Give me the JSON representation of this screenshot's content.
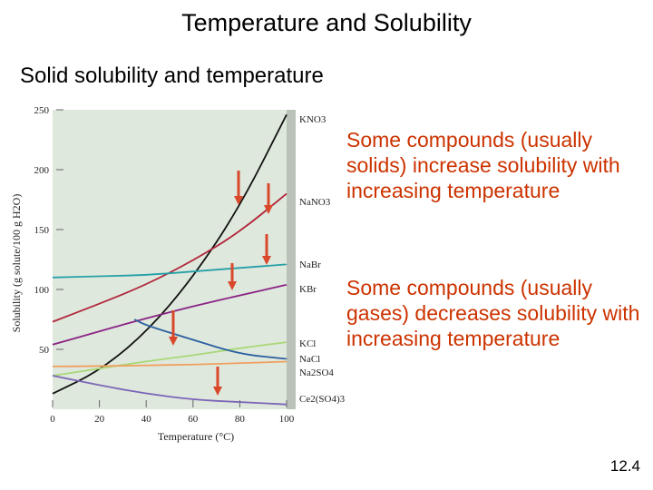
{
  "slide": {
    "title": "Temperature and Solubility",
    "subtitle": "Solid solubility and temperature",
    "note_increase": "Some compounds (usually solids) increase solubility with increasing temperature",
    "note_decrease": "Some compounds (usually gases) decreases solubility with increasing temperature",
    "page_number": "12.4"
  },
  "colors": {
    "note_text": "#cc3300",
    "arrow": "#d9482b",
    "plot_bg": "#dfe8dc"
  },
  "chart_data": {
    "type": "line",
    "xlabel": "Temperature (°C)",
    "ylabel": "Solubility (g solute/100 g H2O)",
    "xlim": [
      0,
      100
    ],
    "ylim": [
      0,
      250
    ],
    "x_ticks": [
      0,
      20,
      40,
      60,
      80,
      100
    ],
    "y_ticks": [
      50,
      100,
      150,
      200,
      250
    ],
    "grid": false,
    "legend": "labels at right end of lines",
    "series": [
      {
        "name": "KNO3",
        "label_sub": "3",
        "label_main": "KNO",
        "color": "#111111",
        "points": [
          [
            0,
            13
          ],
          [
            20,
            32
          ],
          [
            40,
            64
          ],
          [
            60,
            110
          ],
          [
            80,
            169
          ],
          [
            100,
            246
          ]
        ]
      },
      {
        "name": "NaNO3",
        "label_sub": "3",
        "label_main": "NaNO",
        "color": "#b1253a",
        "points": [
          [
            0,
            73
          ],
          [
            20,
            88
          ],
          [
            40,
            104
          ],
          [
            60,
            124
          ],
          [
            80,
            148
          ],
          [
            100,
            180
          ]
        ]
      },
      {
        "name": "NaBr",
        "color": "#26a0a8",
        "points": [
          [
            0,
            110
          ],
          [
            20,
            111
          ],
          [
            40,
            112
          ],
          [
            60,
            115
          ],
          [
            80,
            118
          ],
          [
            100,
            121
          ]
        ]
      },
      {
        "name": "KBr",
        "color": "#8a2385",
        "points": [
          [
            0,
            54
          ],
          [
            20,
            65
          ],
          [
            40,
            76
          ],
          [
            60,
            86
          ],
          [
            80,
            95
          ],
          [
            100,
            104
          ]
        ]
      },
      {
        "name": "KCl",
        "color": "#a8d878",
        "points": [
          [
            0,
            28
          ],
          [
            20,
            34
          ],
          [
            40,
            40
          ],
          [
            60,
            45
          ],
          [
            80,
            51
          ],
          [
            100,
            56
          ]
        ]
      },
      {
        "name": "NaCl",
        "color": "#f0a060",
        "points": [
          [
            0,
            35.7
          ],
          [
            20,
            36
          ],
          [
            40,
            36.6
          ],
          [
            60,
            37.3
          ],
          [
            80,
            38.4
          ],
          [
            100,
            39.8
          ]
        ]
      },
      {
        "name": "Na2SO4",
        "label_main": "Na",
        "label_sub": "2",
        "label_tail": "SO",
        "label_sub2": "4",
        "color": "#2a5fa0",
        "points": [
          [
            35,
            75
          ],
          [
            40,
            70
          ],
          [
            60,
            58
          ],
          [
            80,
            46
          ],
          [
            100,
            42
          ]
        ]
      },
      {
        "name": "Ce2(SO4)3",
        "color": "#7a65b8",
        "points": [
          [
            0,
            28
          ],
          [
            20,
            20
          ],
          [
            40,
            13
          ],
          [
            60,
            8
          ],
          [
            80,
            6
          ],
          [
            100,
            4
          ]
        ]
      }
    ]
  }
}
